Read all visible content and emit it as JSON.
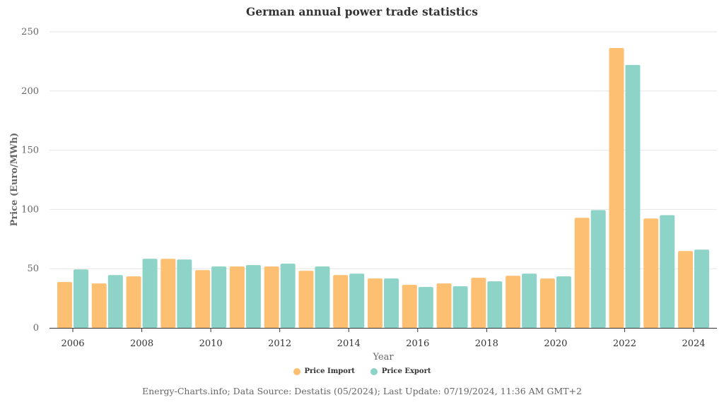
{
  "chart_data": {
    "type": "bar",
    "title": "German annual power trade statistics",
    "xlabel": "Year",
    "ylabel": "Price (Euro/MWh)",
    "ylim": [
      0,
      250
    ],
    "yticks": [
      "0",
      "50",
      "100",
      "150",
      "200",
      "250"
    ],
    "xticks": [
      "2006",
      "2008",
      "2010",
      "2012",
      "2014",
      "2016",
      "2018",
      "2020",
      "2022",
      "2024"
    ],
    "grid": true,
    "legend_position": "bottom",
    "categories": [
      "2006",
      "2007",
      "2008",
      "2009",
      "2010",
      "2011",
      "2012",
      "2013",
      "2014",
      "2015",
      "2016",
      "2017",
      "2018",
      "2019",
      "2020",
      "2021",
      "2022",
      "2023",
      "2024"
    ],
    "series": [
      {
        "name": "Price Import",
        "color": "#fdbf71",
        "values": [
          38.7,
          37.5,
          43.5,
          58.3,
          48.8,
          51.8,
          51.8,
          48.2,
          44.6,
          41.7,
          36.3,
          37.5,
          42.3,
          44.0,
          41.7,
          92.9,
          236.3,
          92.3,
          64.9
        ]
      },
      {
        "name": "Price Export",
        "color": "#8dd3c7",
        "values": [
          49.4,
          44.6,
          58.3,
          57.7,
          51.8,
          53.0,
          54.2,
          51.8,
          45.8,
          41.7,
          34.5,
          35.1,
          39.3,
          45.8,
          43.5,
          99.4,
          222.0,
          95.2,
          66.1
        ]
      }
    ]
  },
  "footer": "Energy-Charts.info; Data Source: Destatis (05/2024); Last Update: 07/19/2024, 11:36 AM GMT+2"
}
